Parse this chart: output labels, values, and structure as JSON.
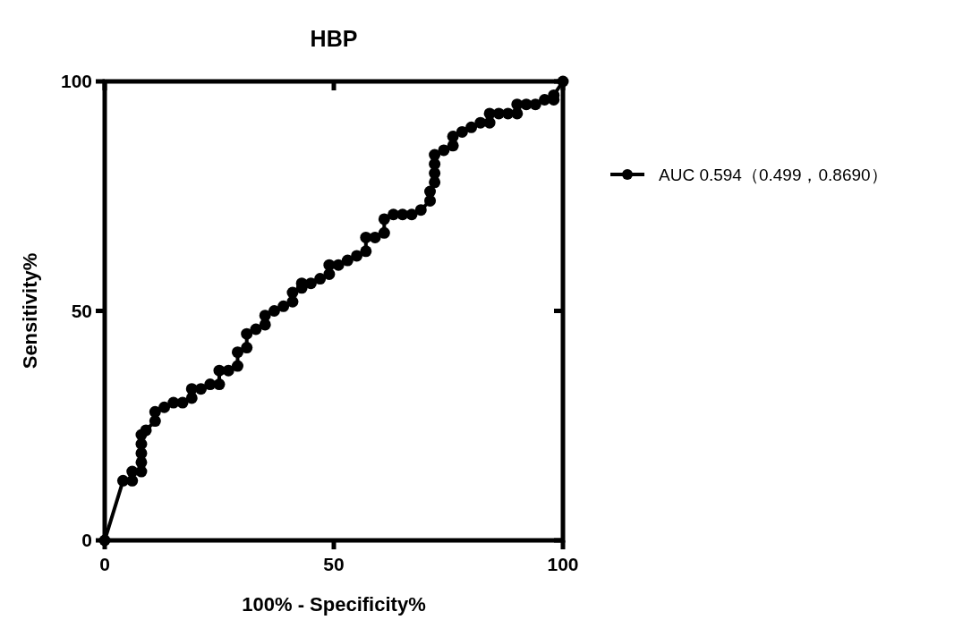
{
  "chart_data": {
    "type": "line",
    "title": "HBP",
    "xlabel": "100% - Specificity%",
    "ylabel": "Sensitivity%",
    "x": [
      0,
      4,
      6,
      6,
      8,
      8,
      8,
      8,
      8,
      9,
      11,
      11,
      13,
      15,
      17,
      19,
      19,
      21,
      23,
      25,
      25,
      27,
      29,
      29,
      31,
      31,
      33,
      35,
      35,
      37,
      39,
      41,
      41,
      43,
      43,
      45,
      47,
      49,
      49,
      51,
      53,
      55,
      57,
      57,
      59,
      61,
      61,
      63,
      65,
      67,
      69,
      71,
      71,
      72,
      72,
      72,
      72,
      74,
      76,
      76,
      78,
      80,
      82,
      84,
      84,
      86,
      88,
      90,
      90,
      92,
      94,
      96,
      98,
      98,
      100
    ],
    "series": [
      {
        "name": "AUC 0.594（0.499，0.8690）",
        "color": "#000000",
        "values": [
          0,
          13,
          13,
          15,
          15,
          17,
          19,
          21,
          23,
          24,
          26,
          28,
          29,
          30,
          30,
          31,
          33,
          33,
          34,
          34,
          37,
          37,
          38,
          41,
          42,
          45,
          46,
          47,
          49,
          50,
          51,
          52,
          54,
          55,
          56,
          56,
          57,
          58,
          60,
          60,
          61,
          62,
          63,
          66,
          66,
          67,
          70,
          71,
          71,
          71,
          72,
          74,
          76,
          78,
          80,
          82,
          84,
          85,
          86,
          88,
          89,
          90,
          91,
          91,
          93,
          93,
          93,
          93,
          95,
          95,
          95,
          96,
          96,
          97,
          100
        ]
      }
    ],
    "xlim": [
      0,
      100
    ],
    "ylim": [
      0,
      100
    ],
    "xticks": [
      0,
      50,
      100
    ],
    "yticks": [
      0,
      50,
      100
    ],
    "marker": "circle",
    "line_style": "solid",
    "legend": "right"
  }
}
